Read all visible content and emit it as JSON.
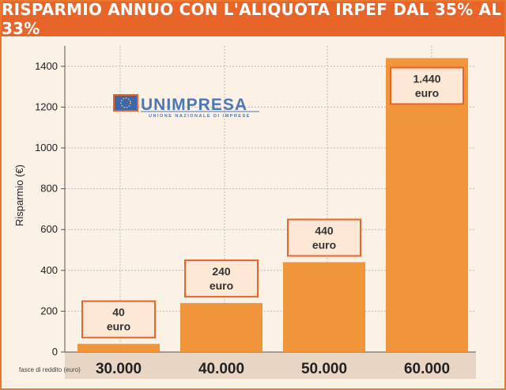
{
  "header": {
    "title": "RISPARMIO ANNUO CON L'ALIQUOTA IRPEF DAL 35% AL 33%"
  },
  "logo": {
    "name": "UNIMPRESA",
    "subtitle": "UNIONE NAZIONALE DI IMPRESE"
  },
  "colors": {
    "bar": "#f0953a",
    "header": "#e8652a",
    "background": "#fcf1e5"
  },
  "chart_data": {
    "type": "bar",
    "title": "RISPARMIO ANNUO CON L'ALIQUOTA IRPEF DAL 35% AL 33%",
    "categories": [
      "30.000",
      "40.000",
      "50.000",
      "60.000"
    ],
    "values": [
      40,
      240,
      440,
      1440
    ],
    "data_labels": [
      {
        "amount": "40",
        "unit": "euro"
      },
      {
        "amount": "240",
        "unit": "euro"
      },
      {
        "amount": "440",
        "unit": "euro"
      },
      {
        "amount": "1.440",
        "unit": "euro"
      }
    ],
    "xlabel": "fasce di reddito (euro)",
    "ylabel": "Risparmio (€)",
    "ylim": [
      0,
      1500
    ],
    "yticks": [
      0,
      200,
      400,
      600,
      800,
      1000,
      1200,
      1400
    ],
    "grid": true
  }
}
